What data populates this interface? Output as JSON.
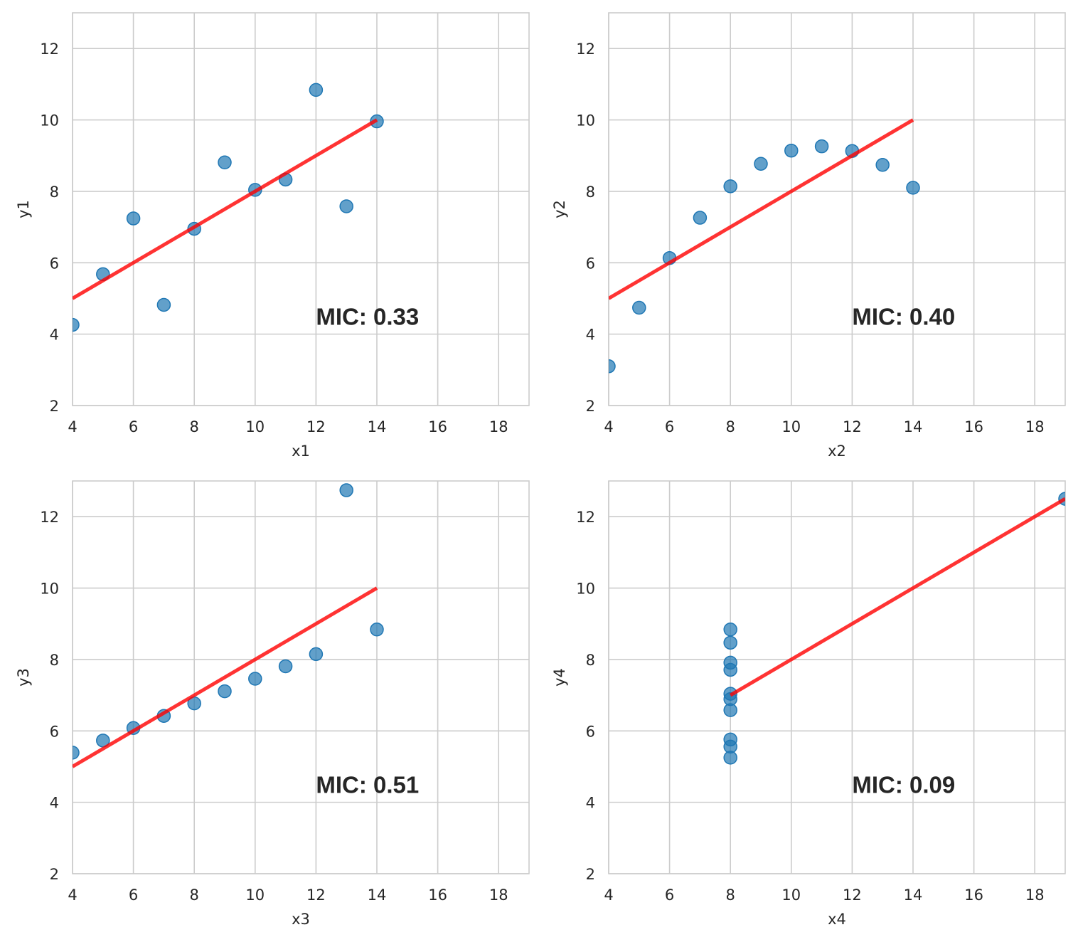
{
  "chart_data": [
    {
      "type": "scatter",
      "xlabel": "x1",
      "ylabel": "y1",
      "xlim": [
        4,
        19
      ],
      "ylim": [
        2,
        13
      ],
      "xticks": [
        "4",
        "6",
        "8",
        "10",
        "12",
        "14",
        "16",
        "18"
      ],
      "yticks": [
        "2",
        "4",
        "6",
        "8",
        "10",
        "12"
      ],
      "grid": true,
      "points": {
        "x": [
          10,
          8,
          13,
          9,
          11,
          14,
          6,
          4,
          12,
          7,
          5
        ],
        "y": [
          8.04,
          6.95,
          7.58,
          8.81,
          8.33,
          9.96,
          7.24,
          4.26,
          10.84,
          4.82,
          5.68
        ]
      },
      "fit_line": {
        "x": [
          4,
          14
        ],
        "y": [
          5,
          10
        ]
      },
      "annotation": {
        "text": "MIC: 0.33",
        "x": 12,
        "y": 4.5
      }
    },
    {
      "type": "scatter",
      "xlabel": "x2",
      "ylabel": "y2",
      "xlim": [
        4,
        19
      ],
      "ylim": [
        2,
        13
      ],
      "xticks": [
        "4",
        "6",
        "8",
        "10",
        "12",
        "14",
        "16",
        "18"
      ],
      "yticks": [
        "2",
        "4",
        "6",
        "8",
        "10",
        "12"
      ],
      "grid": true,
      "points": {
        "x": [
          10,
          8,
          13,
          9,
          11,
          14,
          6,
          4,
          12,
          7,
          5
        ],
        "y": [
          9.14,
          8.14,
          8.74,
          8.77,
          9.26,
          8.1,
          6.13,
          3.1,
          9.13,
          7.26,
          4.74
        ]
      },
      "fit_line": {
        "x": [
          4,
          14
        ],
        "y": [
          5,
          10
        ]
      },
      "annotation": {
        "text": "MIC: 0.40",
        "x": 12,
        "y": 4.5
      }
    },
    {
      "type": "scatter",
      "xlabel": "x3",
      "ylabel": "y3",
      "xlim": [
        4,
        19
      ],
      "ylim": [
        2,
        13
      ],
      "xticks": [
        "4",
        "6",
        "8",
        "10",
        "12",
        "14",
        "16",
        "18"
      ],
      "yticks": [
        "2",
        "4",
        "6",
        "8",
        "10",
        "12"
      ],
      "grid": true,
      "points": {
        "x": [
          10,
          8,
          13,
          9,
          11,
          14,
          6,
          4,
          12,
          7,
          5
        ],
        "y": [
          7.46,
          6.77,
          12.74,
          7.11,
          7.81,
          8.84,
          6.08,
          5.39,
          8.15,
          6.42,
          5.73
        ]
      },
      "fit_line": {
        "x": [
          4,
          14
        ],
        "y": [
          5,
          10
        ]
      },
      "annotation": {
        "text": "MIC: 0.51",
        "x": 12,
        "y": 4.5
      }
    },
    {
      "type": "scatter",
      "xlabel": "x4",
      "ylabel": "y4",
      "xlim": [
        4,
        19
      ],
      "ylim": [
        2,
        13
      ],
      "xticks": [
        "4",
        "6",
        "8",
        "10",
        "12",
        "14",
        "16",
        "18"
      ],
      "yticks": [
        "2",
        "4",
        "6",
        "8",
        "10",
        "12"
      ],
      "grid": true,
      "points": {
        "x": [
          8,
          8,
          8,
          8,
          8,
          8,
          8,
          19,
          8,
          8,
          8
        ],
        "y": [
          6.58,
          5.76,
          7.71,
          8.84,
          8.47,
          7.04,
          5.25,
          12.5,
          5.56,
          7.91,
          6.89
        ]
      },
      "fit_line": {
        "x": [
          8,
          19
        ],
        "y": [
          7,
          12.5
        ]
      },
      "annotation": {
        "text": "MIC: 0.09",
        "x": 12,
        "y": 4.5
      }
    }
  ]
}
